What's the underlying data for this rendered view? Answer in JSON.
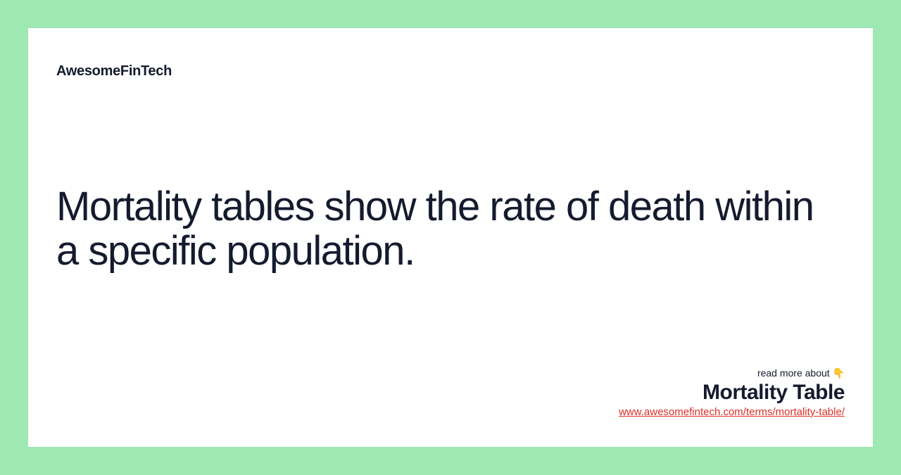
{
  "brand": "AwesomeFinTech",
  "headline": "Mortality tables show the rate of death within a specific population.",
  "footer": {
    "readMore": "read more about 👇",
    "termTitle": "Mortality Table",
    "termLink": "www.awesomefintech.com/terms/mortality-table/"
  },
  "colors": {
    "pageBackground": "#9ee8b3",
    "cardBackground": "#ffffff",
    "textPrimary": "#141b2e",
    "linkColor": "#d93025"
  }
}
